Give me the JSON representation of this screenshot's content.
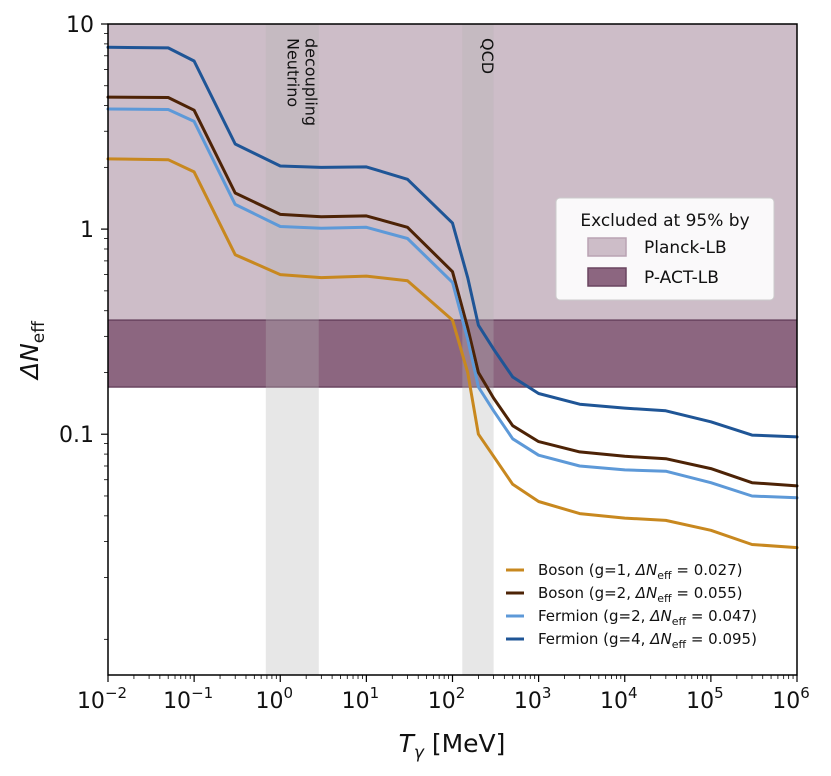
{
  "chart_data": {
    "type": "line",
    "xscale": "log",
    "yscale": "log",
    "xlim": [
      0.01,
      1000000
    ],
    "ylim": [
      0.0067,
      10
    ],
    "xlabel": "T_γ [MeV]",
    "xlabel_main": "T",
    "xlabel_sub": "γ",
    "xlabel_unit": "[MeV]",
    "ylabel": "ΔN_eff",
    "ylabel_main": "ΔN",
    "ylabel_sub": "eff",
    "xticks": [
      {
        "value": 0.01,
        "base": "10",
        "exp": "−2"
      },
      {
        "value": 0.1,
        "base": "10",
        "exp": "−1"
      },
      {
        "value": 1,
        "base": "10",
        "exp": "0"
      },
      {
        "value": 10,
        "base": "10",
        "exp": "1"
      },
      {
        "value": 100,
        "base": "10",
        "exp": "2"
      },
      {
        "value": 1000,
        "base": "10",
        "exp": "3"
      },
      {
        "value": 10000,
        "base": "10",
        "exp": "4"
      },
      {
        "value": 100000,
        "base": "10",
        "exp": "5"
      },
      {
        "value": 1000000,
        "base": "10",
        "exp": "6"
      }
    ],
    "yticks": [
      {
        "value": 10,
        "label": "10"
      },
      {
        "value": 1,
        "label": "1"
      },
      {
        "value": 0.1,
        "label": "0.1"
      }
    ],
    "shaded_regions": [
      {
        "name": "Neutrino decoupling",
        "label_lines": [
          "Neutrino",
          "decoupling"
        ],
        "xmin": 0.68,
        "xmax": 2.8,
        "color": "#b3b3b3"
      },
      {
        "name": "QCD",
        "label_lines": [
          "QCD"
        ],
        "xmin": 130,
        "xmax": 300,
        "color": "#b3b3b3"
      }
    ],
    "exclusion_bands": [
      {
        "name": "Planck-LB",
        "ymin": 0.36,
        "ymax": 10,
        "color": "#cdbdc8"
      },
      {
        "name": "P-ACT-LB",
        "ymin": 0.17,
        "ymax": 0.36,
        "color": "#8c6680"
      }
    ],
    "exclusion_legend_title": "Excluded at 95% by",
    "series": [
      {
        "name": "Boson (g=1, ΔN_eff = 0.027)",
        "legend": {
          "prefix": "Boson (g=1, ",
          "value": " = 0.027)"
        },
        "color": "#c8881f",
        "x": [
          0.01,
          0.05,
          0.1,
          0.3,
          1,
          3,
          10,
          30,
          100,
          150,
          200,
          300,
          500,
          1000,
          3000,
          10000,
          30000,
          100000,
          300000,
          1000000
        ],
        "y": [
          2.2,
          2.18,
          1.9,
          0.75,
          0.6,
          0.58,
          0.59,
          0.56,
          0.36,
          0.2,
          0.1,
          0.078,
          0.057,
          0.047,
          0.041,
          0.039,
          0.038,
          0.034,
          0.029,
          0.028
        ]
      },
      {
        "name": "Boson (g=2, ΔN_eff = 0.055)",
        "legend": {
          "prefix": "Boson (g=2, ",
          "value": " = 0.055)"
        },
        "color": "#4d2306",
        "x": [
          0.01,
          0.05,
          0.1,
          0.3,
          1,
          3,
          10,
          30,
          100,
          150,
          200,
          300,
          500,
          1000,
          3000,
          10000,
          30000,
          100000,
          300000,
          1000000
        ],
        "y": [
          4.4,
          4.38,
          3.8,
          1.5,
          1.18,
          1.15,
          1.16,
          1.02,
          0.62,
          0.33,
          0.2,
          0.15,
          0.11,
          0.092,
          0.082,
          0.078,
          0.076,
          0.068,
          0.058,
          0.056
        ]
      },
      {
        "name": "Fermion (g=2, ΔN_eff = 0.047)",
        "legend": {
          "prefix": "Fermion (g=2, ",
          "value": " = 0.047)"
        },
        "color": "#5d99d8",
        "x": [
          0.01,
          0.05,
          0.1,
          0.3,
          1,
          3,
          10,
          30,
          100,
          150,
          200,
          300,
          500,
          1000,
          3000,
          10000,
          30000,
          100000,
          300000,
          1000000
        ],
        "y": [
          3.85,
          3.83,
          3.35,
          1.32,
          1.03,
          1.01,
          1.02,
          0.9,
          0.55,
          0.29,
          0.17,
          0.13,
          0.095,
          0.079,
          0.07,
          0.067,
          0.066,
          0.058,
          0.05,
          0.049
        ]
      },
      {
        "name": "Fermion (g=4, ΔN_eff = 0.095)",
        "legend": {
          "prefix": "Fermion (g=4, ",
          "value": " = 0.095)"
        },
        "color": "#1f5596",
        "x": [
          0.01,
          0.05,
          0.1,
          0.3,
          1,
          3,
          10,
          30,
          100,
          150,
          200,
          300,
          500,
          1000,
          3000,
          10000,
          30000,
          100000,
          300000,
          1000000
        ],
        "y": [
          7.7,
          7.65,
          6.6,
          2.6,
          2.03,
          2.0,
          2.01,
          1.75,
          1.07,
          0.58,
          0.34,
          0.26,
          0.19,
          0.158,
          0.14,
          0.134,
          0.13,
          0.115,
          0.099,
          0.097
        ]
      }
    ]
  }
}
